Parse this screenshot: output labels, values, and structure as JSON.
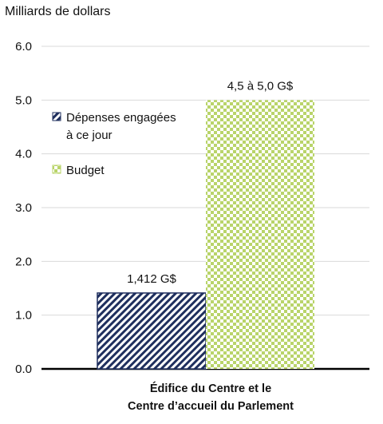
{
  "chart_data": {
    "type": "bar",
    "ylabel": "Milliards de dollars",
    "ylim": [
      0,
      6
    ],
    "yticks": [
      "0.0",
      "1.0",
      "2.0",
      "3.0",
      "4.0",
      "5.0",
      "6.0"
    ],
    "grid": true,
    "legend_position": "top-left",
    "categories": [
      "Édifice du Centre et le Centre d’accueil du Parlement"
    ],
    "category_lines": [
      "Édifice du Centre et le",
      "Centre d’accueil du Parlement"
    ],
    "series": [
      {
        "name": "Dépenses engagées à ce jour",
        "name_lines": [
          "Dépenses engagées",
          "à ce jour"
        ],
        "values": [
          1.412
        ],
        "label": "1,412 G$",
        "color": "#1f2f5e",
        "pattern": "diagonal-stripes"
      },
      {
        "name": "Budget",
        "name_lines": [
          "Budget"
        ],
        "values": [
          5.0
        ],
        "label": "4,5 à 5,0 G$",
        "color": "#b9d46a",
        "pattern": "checkerboard"
      }
    ]
  }
}
